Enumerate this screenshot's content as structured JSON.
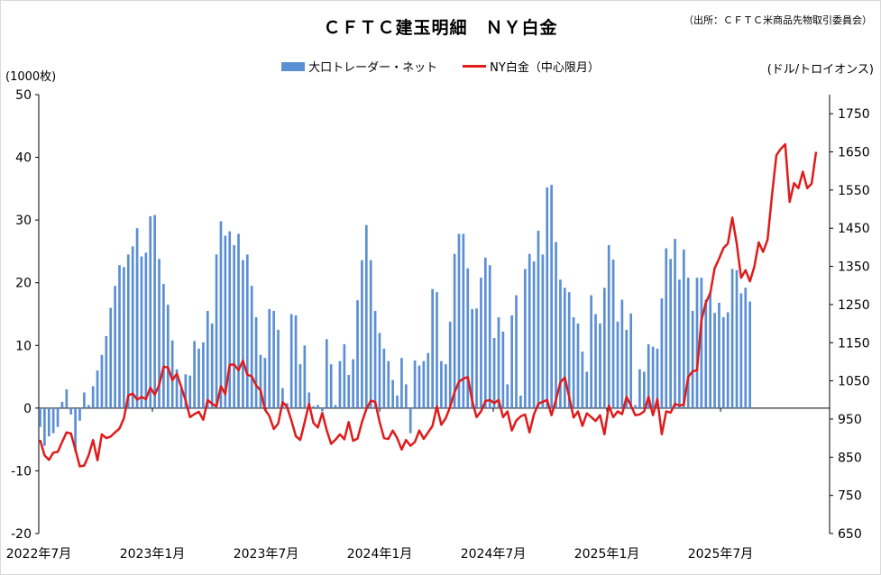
{
  "title": "ＣＦＴＣ建玉明細　ＮＹ白金",
  "source": "（出所：ＣＦＴＣ米商品先物取引委員会）",
  "legend": {
    "bar": "大口トレーダー・ネット",
    "line": "NY白金（中心限月）"
  },
  "units": {
    "left": "(1000枚)",
    "right": "(ドル/トロイオンス)"
  },
  "colors": {
    "bar": "#5b8fd4",
    "line": "#e01b1b"
  },
  "chart_data": {
    "type": "bar+line",
    "x_start": "2022年7月",
    "x_tick_labels": [
      "2022年7月",
      "2023年1月",
      "2023年7月",
      "2024年1月",
      "2024年7月",
      "2025年1月",
      "2025年7月"
    ],
    "left_axis": {
      "min": -20,
      "max": 50,
      "step": 10,
      "ticks": [
        "-20",
        "-10",
        "0",
        "10",
        "20",
        "30",
        "40",
        "50"
      ]
    },
    "right_axis": {
      "min": 650,
      "max": 1800,
      "ticks": [
        "650",
        "750",
        "850",
        "950",
        "1050",
        "1150",
        "1250",
        "1350",
        "1450",
        "1550",
        "1650",
        "1750"
      ]
    },
    "series": [
      {
        "name": "大口トレーダー・ネット",
        "type": "bar",
        "axis": "left",
        "values": [
          -3,
          -6,
          -4.5,
          -4,
          -3,
          1,
          3,
          -1,
          -7,
          -2,
          2.5,
          0.5,
          3.5,
          6,
          8.5,
          11.5,
          16,
          19.5,
          22.8,
          22.5,
          24.5,
          25.8,
          28.7,
          24.2,
          24.8,
          30.6,
          30.8,
          23.8,
          19.8,
          16.5,
          10.8,
          6.2,
          3.1,
          5.4,
          5.2,
          10.7,
          9.5,
          10.5,
          15.5,
          13.5,
          24.5,
          29.8,
          27.5,
          28.2,
          26,
          27.8,
          23.6,
          24.5,
          19.5,
          14.5,
          8.5,
          8,
          15.8,
          15.5,
          12.5,
          3.2,
          0.8,
          15,
          14.8,
          7,
          10,
          2.5,
          0.3,
          0.5,
          -0.5,
          11,
          7,
          0.5,
          7.5,
          10.2,
          5.3,
          7.8,
          17.2,
          23.6,
          29.2,
          23.6,
          15.5,
          12,
          9.5,
          7.5,
          4.5,
          2,
          8,
          3.8,
          -4,
          7.6,
          6.8,
          7.5,
          8.8,
          19,
          18.5,
          7.5,
          7,
          13.8,
          24.6,
          27.8,
          27.8,
          22.3,
          15.8,
          15.9,
          20.8,
          24,
          22.8,
          11.2,
          14.5,
          12.2,
          3.8,
          14.8,
          18,
          2,
          22.2,
          24.6,
          23.4,
          28.3,
          24.5,
          35.2,
          35.6,
          26.5,
          20.5,
          19.2,
          18.5,
          14.5,
          13.5,
          9,
          5.8,
          18,
          15,
          13.5,
          19.2,
          26,
          23.7,
          13.8,
          17.3,
          12.5,
          15.1,
          0.5,
          6.2,
          5.8,
          10.2,
          9.8,
          9.5,
          17.5,
          25.5,
          23.8,
          27,
          20.5,
          25.3,
          20.8,
          15.5,
          20.8,
          20.8,
          17.3,
          18.5,
          15.2,
          16.8,
          14.5,
          15.3,
          22.2,
          22,
          18.3,
          19.2,
          17
        ]
      },
      {
        "name": "NY白金（中心限月）",
        "type": "line",
        "axis": "right",
        "values": [
          895,
          855,
          843,
          862,
          864,
          890,
          915,
          912,
          870,
          826,
          828,
          855,
          895,
          842,
          910,
          900,
          904,
          915,
          925,
          952,
          1012,
          1017,
          1001,
          1008,
          1002,
          1032,
          1014,
          1039,
          1087,
          1085,
          1052,
          1069,
          1034,
          999,
          955,
          963,
          969,
          948,
          1000,
          990,
          983,
          1036,
          1015,
          1092,
          1093,
          1078,
          1103,
          1066,
          1062,
          1038,
          1025,
          975,
          958,
          924,
          938,
          994,
          982,
          946,
          905,
          895,
          942,
          990,
          940,
          928,
          966,
          921,
          885,
          896,
          910,
          897,
          942,
          893,
          899,
          942,
          976,
          998,
          995,
          942,
          900,
          898,
          920,
          900,
          870,
          895,
          880,
          890,
          920,
          898,
          915,
          932,
          983,
          935,
          952,
          982,
          1020,
          1048,
          1056,
          1060,
          998,
          955,
          970,
          997,
          1000,
          992,
          1000,
          955,
          970,
          920,
          946,
          957,
          962,
          915,
          962,
          990,
          995,
          1000,
          960,
          1000,
          1046,
          1059,
          1008,
          954,
          970,
          932,
          965,
          955,
          945,
          960,
          910,
          985,
          955,
          970,
          963,
          1008,
          985,
          960,
          962,
          970,
          1008,
          960,
          1002,
          910,
          970,
          967,
          990,
          985,
          988,
          1060,
          1075,
          1078,
          1210,
          1255,
          1280,
          1345,
          1370,
          1398,
          1410,
          1478,
          1410,
          1320,
          1340,
          1311,
          1350,
          1413,
          1388,
          1420,
          1536,
          1641,
          1658,
          1670,
          1519,
          1568,
          1555,
          1598,
          1555,
          1567,
          1650
        ]
      }
    ]
  }
}
